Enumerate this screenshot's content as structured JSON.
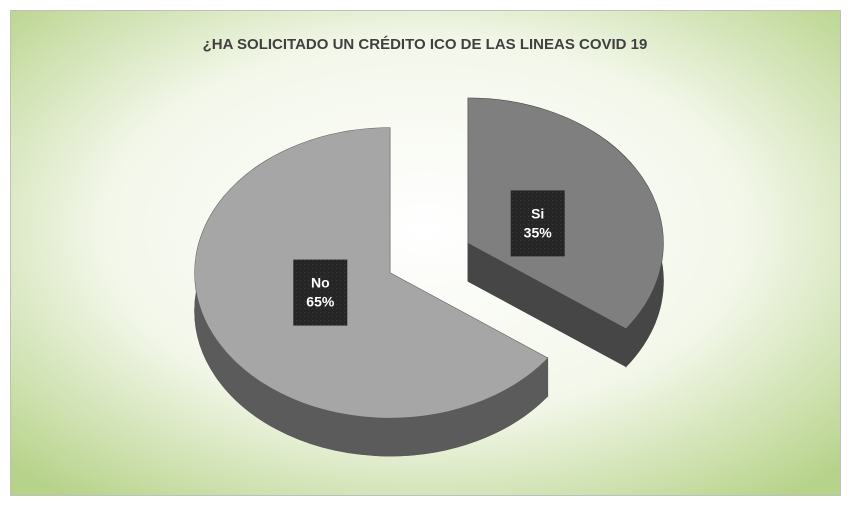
{
  "chart_data": {
    "type": "pie",
    "title": "¿HA SOLICITADO UN CRÉDITO ICO DE LAS LINEAS COVID 19",
    "categories": [
      "Si",
      "No"
    ],
    "values": [
      35,
      65
    ],
    "value_labels": [
      "35%",
      "65%"
    ],
    "colors": [
      "#7f7f7f",
      "#a6a6a6"
    ]
  }
}
